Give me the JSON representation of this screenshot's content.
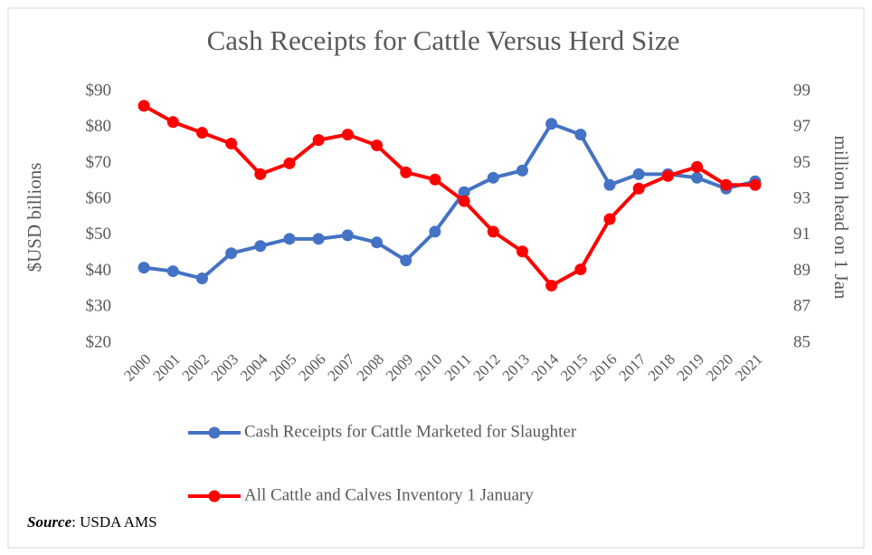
{
  "chart_data": {
    "type": "line",
    "title": "Cash Receipts for Cattle Versus Herd Size",
    "y_label": "$USD billions",
    "y2_label": "million head on 1 Jan",
    "categories": [
      "2000",
      "2001",
      "2002",
      "2003",
      "2004",
      "2005",
      "2006",
      "2007",
      "2008",
      "2009",
      "2010",
      "2011",
      "2012",
      "2013",
      "2014",
      "2015",
      "2016",
      "2017",
      "2018",
      "2019",
      "2020",
      "2021"
    ],
    "series": [
      {
        "name": "Cash Receipts for Cattle Marketed for Slaughter",
        "color": "#4472c4",
        "axis": "y",
        "values": [
          41,
          40,
          38,
          45,
          47,
          49,
          49,
          50,
          48,
          43,
          51,
          62,
          66,
          68,
          81,
          78,
          64,
          67,
          67,
          66,
          63,
          65
        ]
      },
      {
        "name": "All Cattle and Calves Inventory 1 January",
        "color": "#ff0000",
        "axis": "y2",
        "values": [
          98.2,
          97.3,
          96.7,
          96.1,
          94.4,
          95.0,
          96.3,
          96.6,
          96.0,
          94.5,
          94.1,
          92.9,
          91.2,
          90.1,
          88.2,
          89.1,
          91.9,
          93.6,
          94.3,
          94.8,
          93.8,
          93.8
        ]
      }
    ],
    "ylim": [
      20,
      90
    ],
    "yticks": [
      {
        "value": 20,
        "label": "$20"
      },
      {
        "value": 30,
        "label": "$30"
      },
      {
        "value": 40,
        "label": "$40"
      },
      {
        "value": 50,
        "label": "$50"
      },
      {
        "value": 60,
        "label": "$60"
      },
      {
        "value": 70,
        "label": "$70"
      },
      {
        "value": 80,
        "label": "$80"
      },
      {
        "value": 90,
        "label": "$90"
      }
    ],
    "y2lim": [
      85,
      99
    ],
    "y2ticks": [
      85,
      87,
      89,
      91,
      93,
      95,
      97,
      99
    ],
    "grid": false,
    "source_label": "Source",
    "source_text": ": USDA AMS"
  }
}
